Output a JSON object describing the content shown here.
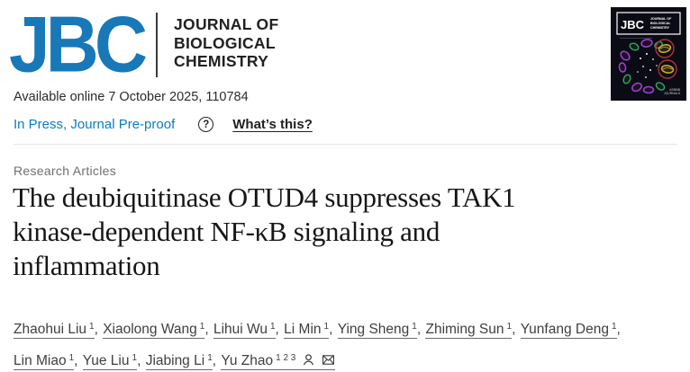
{
  "header": {
    "logo_text": "JBC",
    "journal_name_lines": [
      "JOURNAL OF",
      "BIOLOGICAL",
      "CHEMISTRY"
    ],
    "cover": {
      "logo_text": "JBC",
      "journal_small_lines": [
        "JOURNAL OF",
        "BIOLOGICAL",
        "CHEMISTRY"
      ],
      "footer_lines": [
        "ASBMB",
        "JOURNALS"
      ]
    }
  },
  "meta": {
    "available_online": "Available online 7 October 2025, 110784",
    "in_press_label": "In Press, Journal Pre-proof",
    "help_icon_glyph": "?",
    "whats_this_label": "What’s this?"
  },
  "article": {
    "section_label": "Research Articles",
    "title": "The deubiquitinase OTUD4 suppresses TAK1 kinase-dependent NF-κB signaling and inflammation",
    "title_lines": [
      "The deubiquitinase OTUD4 suppresses TAK1",
      "kinase-dependent NF-κB signaling and",
      "inflammation"
    ],
    "authors": [
      {
        "name": "Zhaohui Liu",
        "sup": "1"
      },
      {
        "name": "Xiaolong Wang",
        "sup": "1"
      },
      {
        "name": "Lihui Wu",
        "sup": "1"
      },
      {
        "name": "Li Min",
        "sup": "1"
      },
      {
        "name": "Ying Sheng",
        "sup": "1"
      },
      {
        "name": "Zhiming Sun",
        "sup": "1"
      },
      {
        "name": "Yunfang Deng",
        "sup": "1"
      },
      {
        "name": "Lin Miao",
        "sup": "1"
      },
      {
        "name": "Yue Liu",
        "sup": "1"
      },
      {
        "name": "Jiabing Li",
        "sup": "1"
      },
      {
        "name": "Yu Zhao",
        "sup": "1 2 3",
        "icons": [
          "person-icon",
          "envelope-icon"
        ]
      }
    ]
  },
  "colors": {
    "brand_blue": "#1878B8",
    "link_blue": "#0B7DBE",
    "header_black": "#232021",
    "text_dark": "#2C2C2C",
    "text_gray": "#6F6F6F",
    "author_text": "#3F3F3F",
    "divider": "#E4E4E4",
    "cover_background": "#0B0B15",
    "cover_purple": "#9B3FD0",
    "cover_green": "#2FA866",
    "cover_yellow": "#C9A62B",
    "cover_red_circle": "#B03434"
  }
}
